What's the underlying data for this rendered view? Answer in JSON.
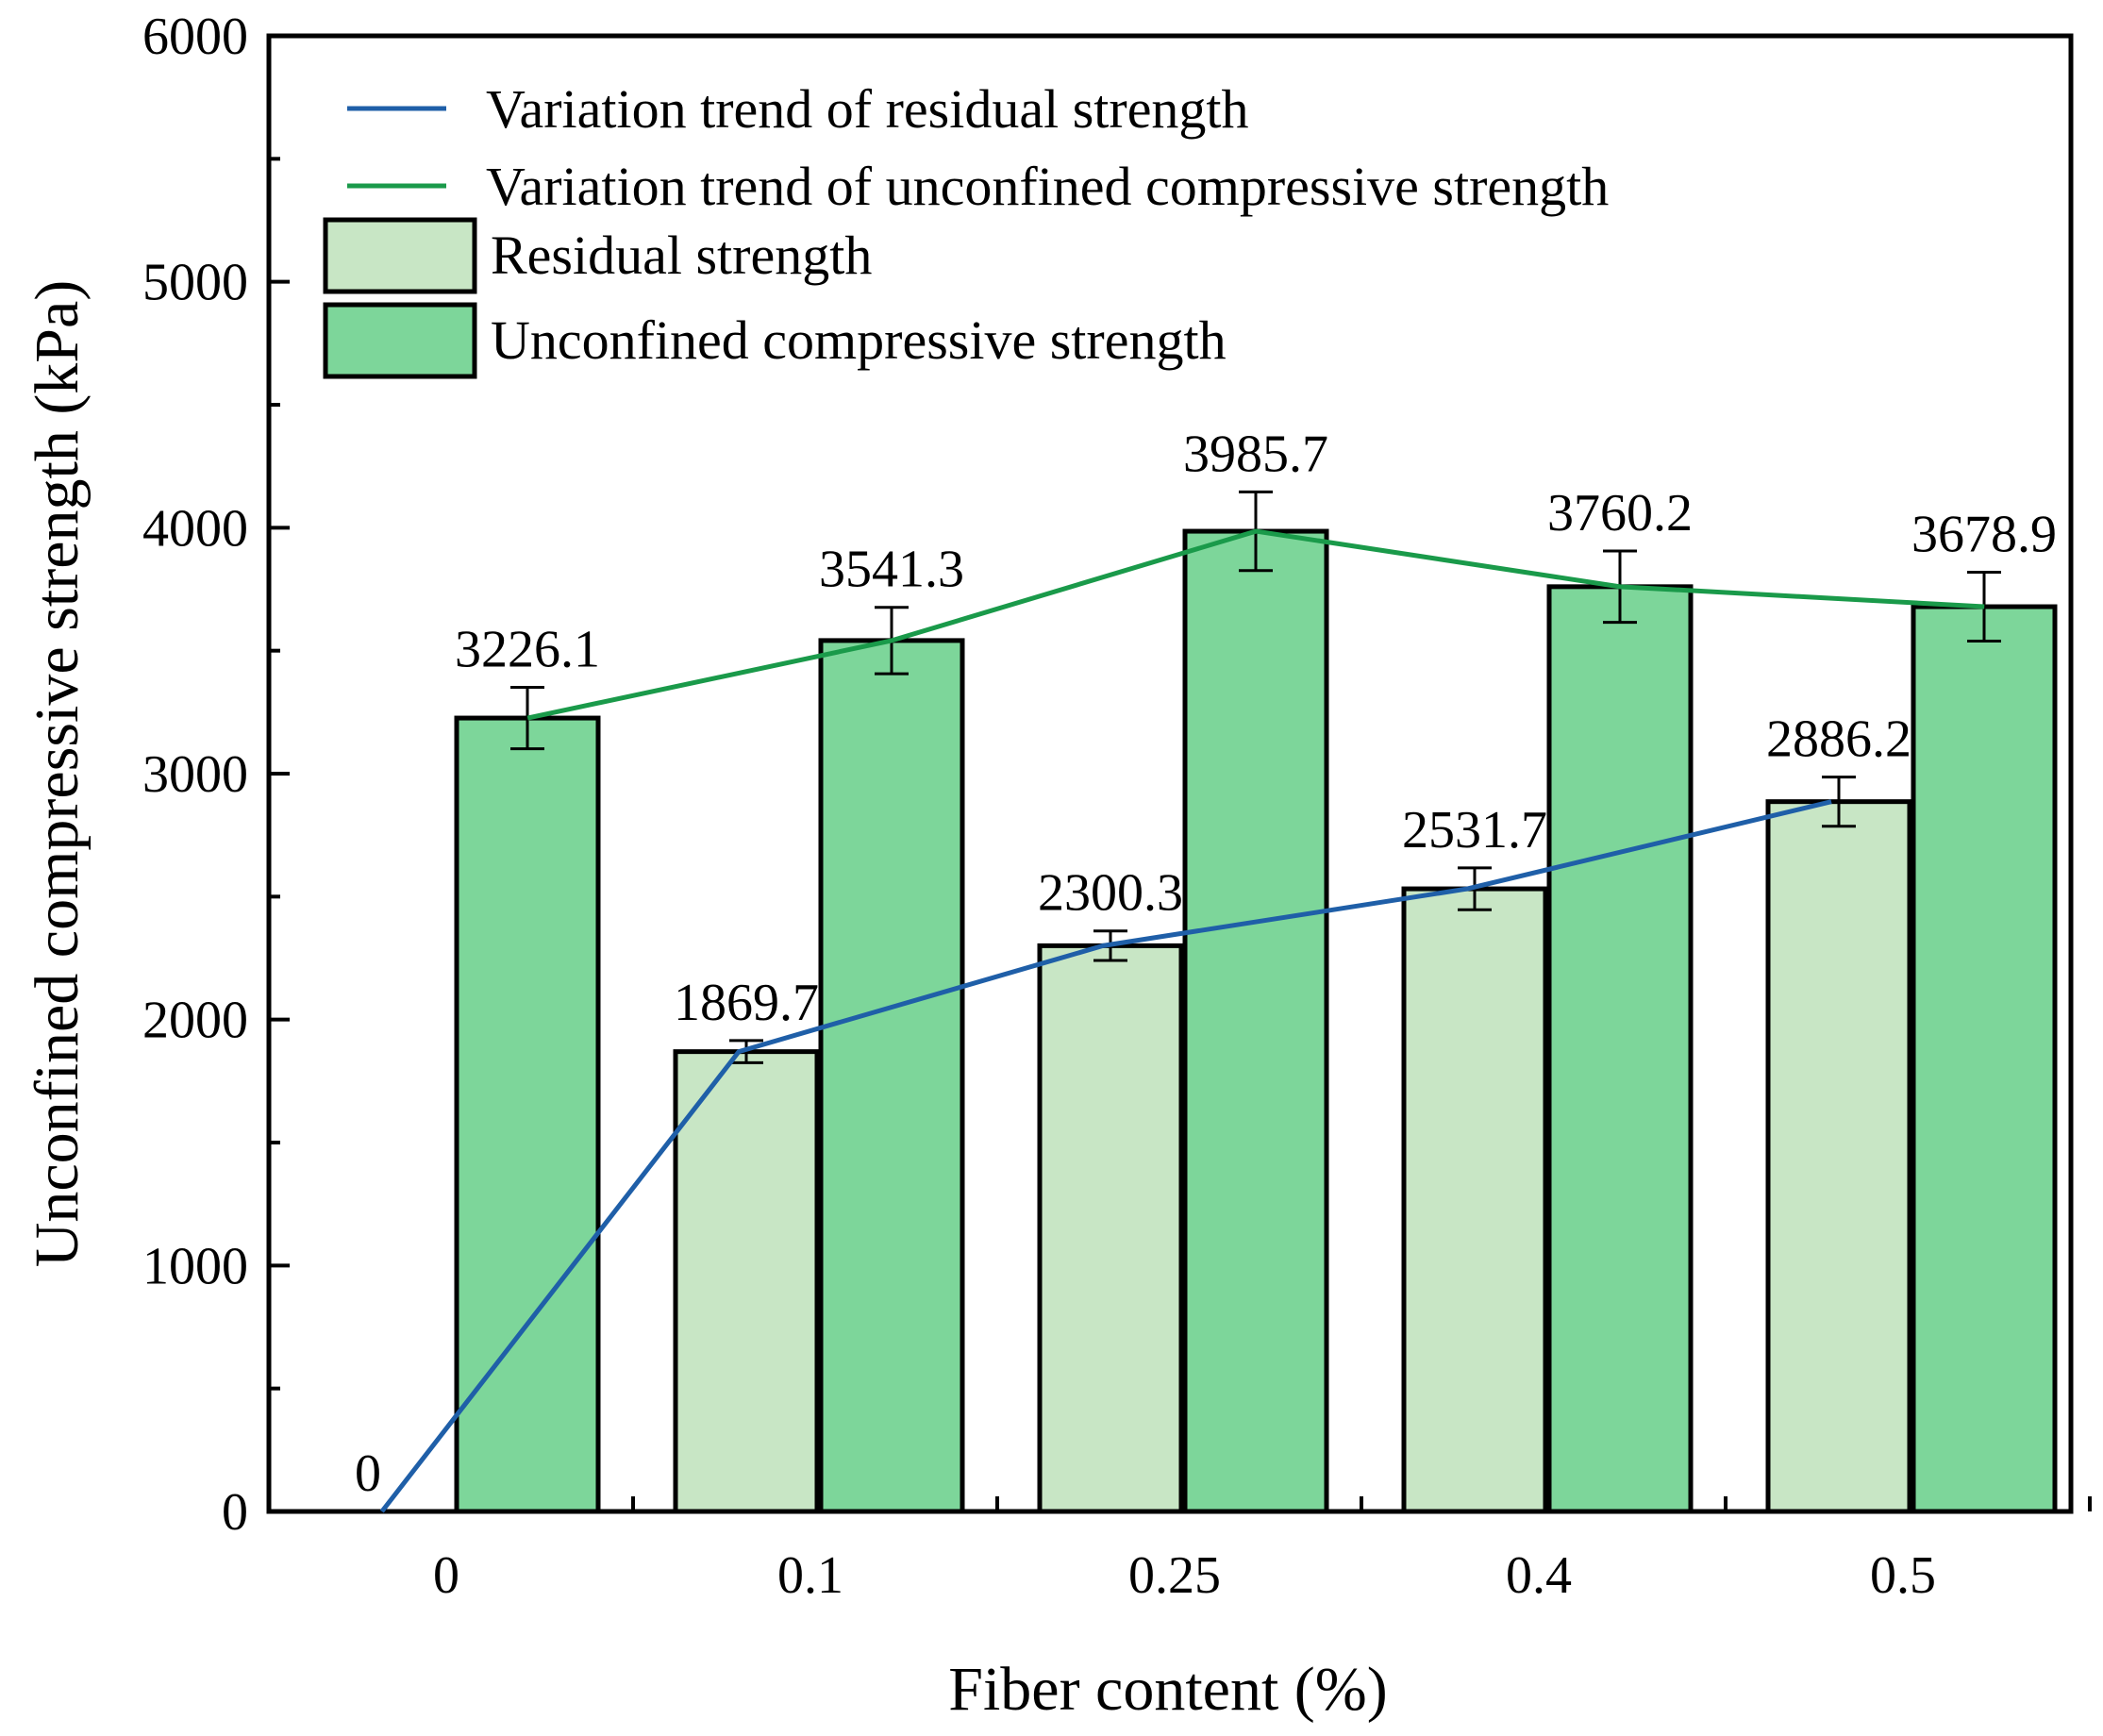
{
  "chart_data": {
    "type": "bar",
    "xlabel": "Fiber content (%)",
    "ylabel": "Unconfined compressive strength (kPa)",
    "ylim": [
      0,
      6000
    ],
    "yticks": [
      "0",
      "1000",
      "2000",
      "3000",
      "4000",
      "5000",
      "6000"
    ],
    "categories": [
      "0",
      "0.1",
      "0.25",
      "0.4",
      "0.5"
    ],
    "series": [
      {
        "name": "Residual strength",
        "values": [
          0,
          1869.7,
          2300.3,
          2531.7,
          2886.2
        ],
        "labels": [
          "0",
          "1869.7",
          "2300.3",
          "2531.7",
          "2886.2"
        ],
        "errors": [
          0,
          45,
          60,
          85,
          100
        ],
        "color": "#c8e6c5"
      },
      {
        "name": "Unconfined compressive strength",
        "values": [
          3226.1,
          3541.3,
          3985.7,
          3760.2,
          3678.9
        ],
        "labels": [
          "3226.1",
          "3541.3",
          "3985.7",
          "3760.2",
          "3678.9"
        ],
        "errors": [
          125,
          135,
          160,
          145,
          140
        ],
        "color": "#7dd69a"
      }
    ],
    "trend_lines": [
      {
        "name": "Variation trend of residual strength",
        "color": "#1f5fa8",
        "points": [
          [
            -0.2,
            0
          ],
          [
            0.78,
            1869.7
          ],
          [
            1.78,
            2300.3
          ],
          [
            2.78,
            2531.7
          ],
          [
            3.78,
            2886.2
          ]
        ]
      },
      {
        "name": "Variation trend of unconfined compressive strength",
        "color": "#1a9a4a",
        "points": [
          [
            0.2,
            3226.1
          ],
          [
            1.2,
            3541.3
          ],
          [
            2.2,
            3985.7
          ],
          [
            3.2,
            3760.2
          ],
          [
            4.2,
            3678.9
          ]
        ]
      }
    ],
    "legend": {
      "position": "top-left",
      "items": [
        "Variation trend of residual strength",
        "Variation trend of unconfined compressive strength",
        "Residual strength",
        "Unconfined compressive strength"
      ]
    }
  }
}
